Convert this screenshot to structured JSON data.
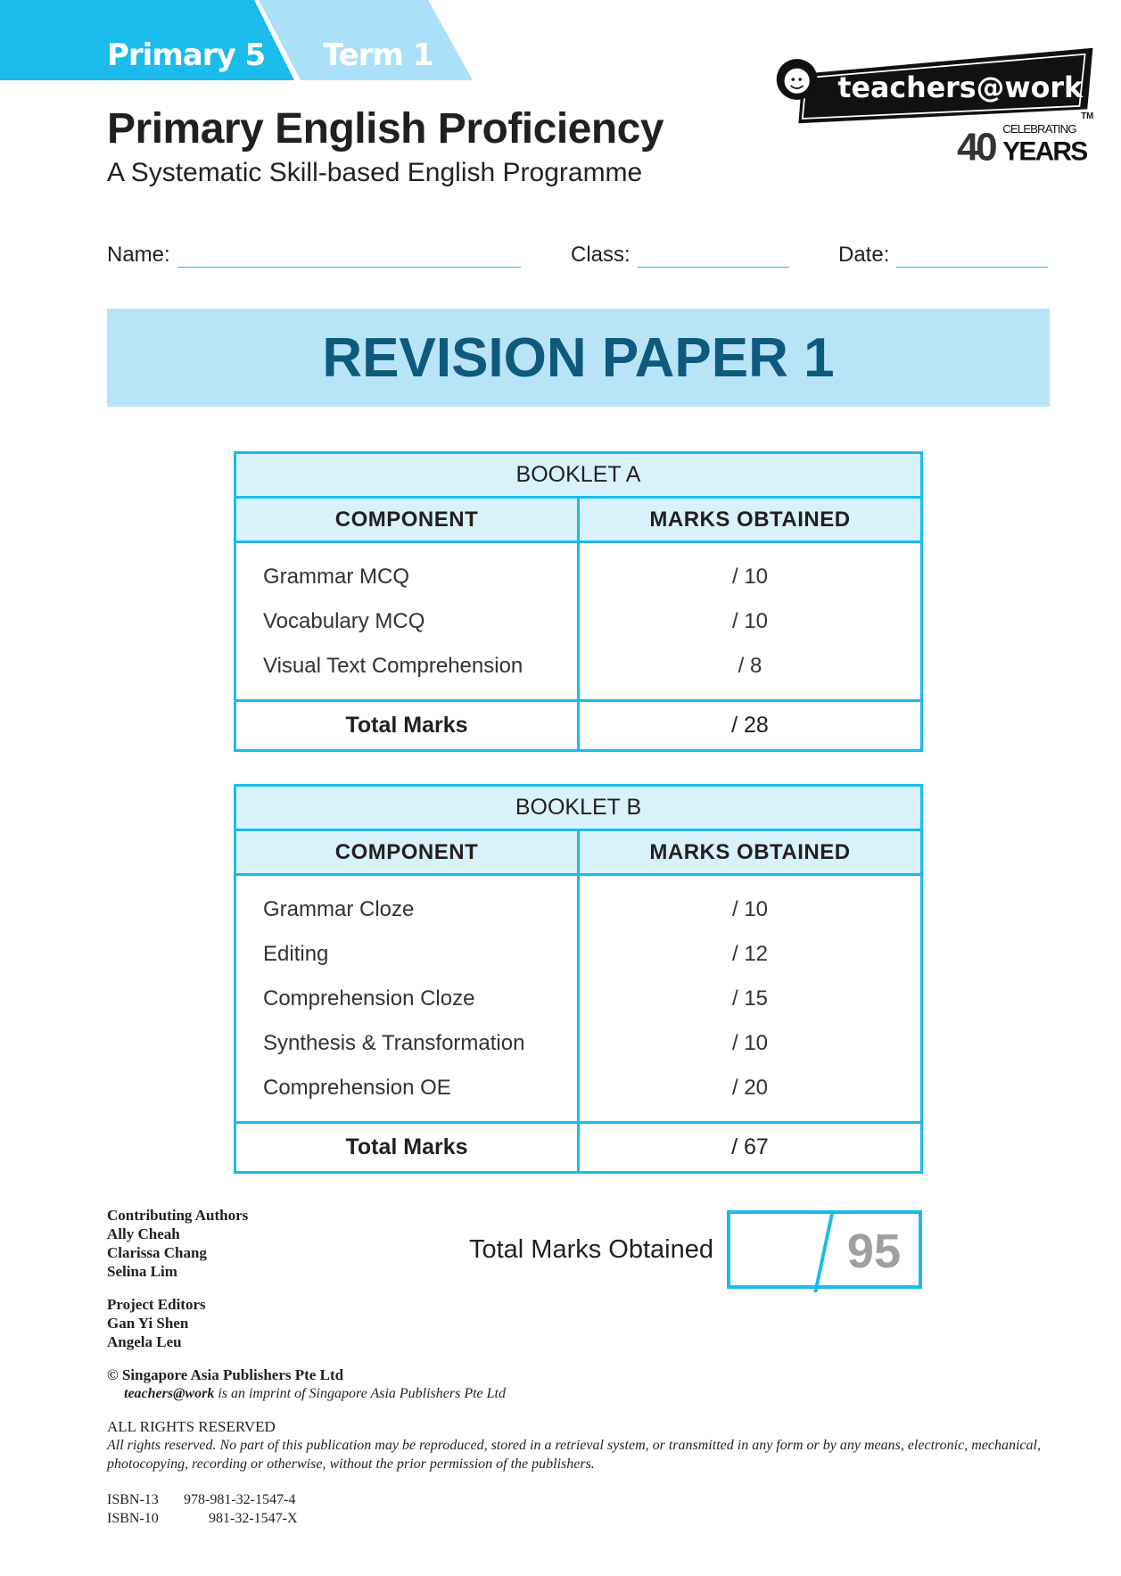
{
  "header": {
    "level": "Primary 5",
    "term": "Term 1",
    "title": "Primary English Proficiency",
    "subtitle": "A Systematic Skill-based English Programme",
    "logo": {
      "text": "teachers@work",
      "tm": "TM",
      "anniversary": "40",
      "celebrating": "CELEBRATING",
      "years": "YEARS"
    },
    "brand_colors": {
      "primary": "#1bbbeb",
      "light": "#abe0f8",
      "banner": "#b9e4f8",
      "banner_text": "#0d5a7c"
    }
  },
  "fields": {
    "name": "Name:",
    "class": "Class:",
    "date": "Date:"
  },
  "banner": "REVISION PAPER 1",
  "booklets": [
    {
      "title": "BOOKLET A",
      "col1": "COMPONENT",
      "col2": "MARKS OBTAINED",
      "rows": [
        {
          "c": "Grammar MCQ",
          "m": "/ 10"
        },
        {
          "c": "Vocabulary MCQ",
          "m": "/ 10"
        },
        {
          "c": "Visual Text Comprehension",
          "m": "/ 8"
        }
      ],
      "total_label": "Total Marks",
      "total": "/ 28"
    },
    {
      "title": "BOOKLET B",
      "col1": "COMPONENT",
      "col2": "MARKS OBTAINED",
      "rows": [
        {
          "c": "Grammar Cloze",
          "m": "/ 10"
        },
        {
          "c": "Editing",
          "m": "/ 12"
        },
        {
          "c": "Comprehension Cloze",
          "m": "/ 15"
        },
        {
          "c": "Synthesis & Transformation",
          "m": "/ 10"
        },
        {
          "c": "Comprehension OE",
          "m": "/ 20"
        }
      ],
      "total_label": "Total Marks",
      "total": "/ 67"
    }
  ],
  "total_marks": {
    "label": "Total Marks Obtained",
    "value": "95"
  },
  "footer": {
    "authors_label": "Contributing Authors",
    "authors": [
      "Ally Cheah",
      "Clarissa Chang",
      "Selina Lim"
    ],
    "editors_label": "Project Editors",
    "editors": [
      "Gan Yi Shen",
      "Angela Leu"
    ],
    "copyright": "© Singapore Asia Publishers Pte Ltd",
    "imprint_brand": "teachers@work",
    "imprint_rest": " is an imprint of Singapore Asia Publishers Pte Ltd",
    "rights_label": "ALL RIGHTS RESERVED",
    "rights_text": "All rights reserved. No part of this publication may be reproduced, stored in a retrieval system, or transmitted in any form or by any means, electronic, mechanical, photocopying, recording or otherwise, without the prior permission of the publishers.",
    "isbn13_label": "ISBN-13",
    "isbn13": "978-981-32-1547-4",
    "isbn10_label": "ISBN-10",
    "isbn10": "981-32-1547-X"
  }
}
